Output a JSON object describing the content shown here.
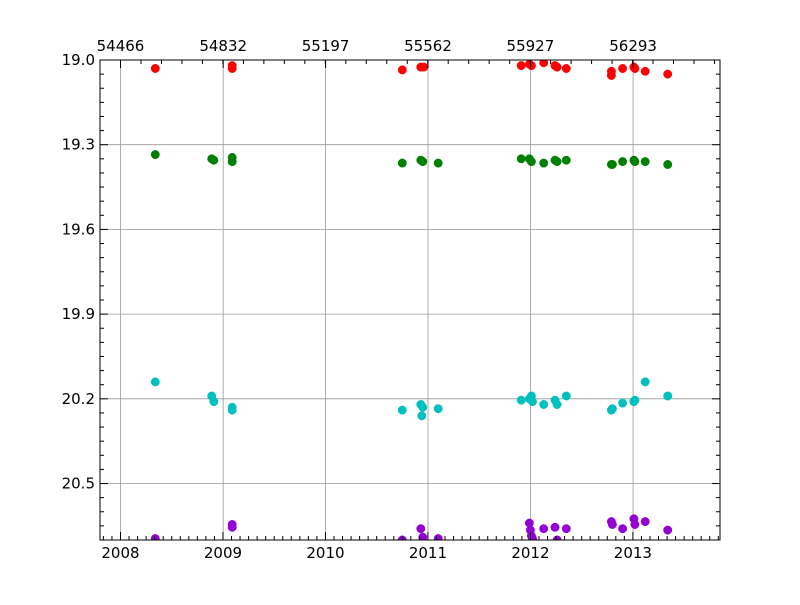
{
  "chart_data": {
    "type": "scatter",
    "title": "",
    "xlabel": "",
    "ylabel": "",
    "x_axis": {
      "unit": "year",
      "range": [
        2007.8,
        2013.85
      ],
      "ticks": [
        2008,
        2009,
        2010,
        2011,
        2012,
        2013
      ],
      "tick_labels": [
        "2008",
        "2009",
        "2010",
        "2011",
        "2012",
        "2013"
      ]
    },
    "x2_axis": {
      "position": "top",
      "unit": "MJD",
      "ticks": [
        54466,
        54832,
        55197,
        55562,
        55927,
        56293
      ],
      "tick_labels": [
        "54466",
        "54832",
        "55197",
        "55562",
        "55927",
        "56293"
      ]
    },
    "y_axis": {
      "range": [
        19.0,
        20.7
      ],
      "inverted": true,
      "ticks": [
        19.0,
        19.3,
        19.6,
        19.9,
        20.2,
        20.5
      ],
      "tick_labels": [
        "19.0",
        "19.3",
        "19.6",
        "19.9",
        "20.2",
        "20.5"
      ]
    },
    "grid": true,
    "legend": "none",
    "series": [
      {
        "color": "#ff0000",
        "points": [
          [
            2008.34,
            19.03
          ],
          [
            2009.09,
            19.02
          ],
          [
            2009.09,
            19.03
          ],
          [
            2010.75,
            19.035
          ],
          [
            2010.93,
            19.025
          ],
          [
            2010.96,
            19.025
          ],
          [
            2011.91,
            19.02
          ],
          [
            2011.99,
            19.015
          ],
          [
            2012.01,
            19.02
          ],
          [
            2012.13,
            19.01
          ],
          [
            2012.24,
            19.02
          ],
          [
            2012.26,
            19.025
          ],
          [
            2012.35,
            19.03
          ],
          [
            2012.79,
            19.04
          ],
          [
            2012.79,
            19.055
          ],
          [
            2012.9,
            19.03
          ],
          [
            2013.01,
            19.025
          ],
          [
            2013.02,
            19.03
          ],
          [
            2013.12,
            19.04
          ],
          [
            2013.34,
            19.05
          ]
        ]
      },
      {
        "color": "#008000",
        "points": [
          [
            2008.34,
            19.335
          ],
          [
            2008.89,
            19.35
          ],
          [
            2008.91,
            19.355
          ],
          [
            2009.09,
            19.345
          ],
          [
            2009.09,
            19.36
          ],
          [
            2010.75,
            19.365
          ],
          [
            2010.93,
            19.355
          ],
          [
            2010.95,
            19.36
          ],
          [
            2011.1,
            19.365
          ],
          [
            2011.91,
            19.35
          ],
          [
            2011.99,
            19.35
          ],
          [
            2012.01,
            19.36
          ],
          [
            2012.13,
            19.365
          ],
          [
            2012.24,
            19.355
          ],
          [
            2012.26,
            19.36
          ],
          [
            2012.35,
            19.355
          ],
          [
            2012.79,
            19.37
          ],
          [
            2012.8,
            19.37
          ],
          [
            2012.9,
            19.36
          ],
          [
            2013.01,
            19.355
          ],
          [
            2013.02,
            19.36
          ],
          [
            2013.12,
            19.36
          ],
          [
            2013.34,
            19.37
          ]
        ]
      },
      {
        "color": "#00bfbf",
        "points": [
          [
            2008.34,
            20.14
          ],
          [
            2008.89,
            20.19
          ],
          [
            2008.91,
            20.21
          ],
          [
            2009.09,
            20.23
          ],
          [
            2009.09,
            20.24
          ],
          [
            2010.75,
            20.24
          ],
          [
            2010.93,
            20.22
          ],
          [
            2010.94,
            20.26
          ],
          [
            2010.95,
            20.23
          ],
          [
            2011.1,
            20.235
          ],
          [
            2011.91,
            20.205
          ],
          [
            2011.99,
            20.2
          ],
          [
            2012.01,
            20.19
          ],
          [
            2012.02,
            20.21
          ],
          [
            2012.13,
            20.22
          ],
          [
            2012.24,
            20.205
          ],
          [
            2012.26,
            20.22
          ],
          [
            2012.35,
            20.19
          ],
          [
            2012.79,
            20.24
          ],
          [
            2012.8,
            20.235
          ],
          [
            2012.9,
            20.215
          ],
          [
            2013.01,
            20.21
          ],
          [
            2013.02,
            20.205
          ],
          [
            2013.12,
            20.14
          ],
          [
            2013.34,
            20.19
          ]
        ]
      },
      {
        "color": "#9400d3",
        "points": [
          [
            2008.34,
            20.695
          ],
          [
            2009.09,
            20.645
          ],
          [
            2009.09,
            20.655
          ],
          [
            2010.75,
            20.7
          ],
          [
            2010.93,
            20.66
          ],
          [
            2010.95,
            20.69
          ],
          [
            2011.1,
            20.695
          ],
          [
            2011.99,
            20.64
          ],
          [
            2012.0,
            20.665
          ],
          [
            2012.01,
            20.685
          ],
          [
            2012.02,
            20.695
          ],
          [
            2012.13,
            20.66
          ],
          [
            2012.24,
            20.655
          ],
          [
            2012.26,
            20.7
          ],
          [
            2012.35,
            20.66
          ],
          [
            2012.79,
            20.635
          ],
          [
            2012.8,
            20.645
          ],
          [
            2012.9,
            20.66
          ],
          [
            2013.01,
            20.625
          ],
          [
            2013.02,
            20.645
          ],
          [
            2013.12,
            20.635
          ],
          [
            2013.34,
            20.665
          ]
        ]
      }
    ]
  }
}
